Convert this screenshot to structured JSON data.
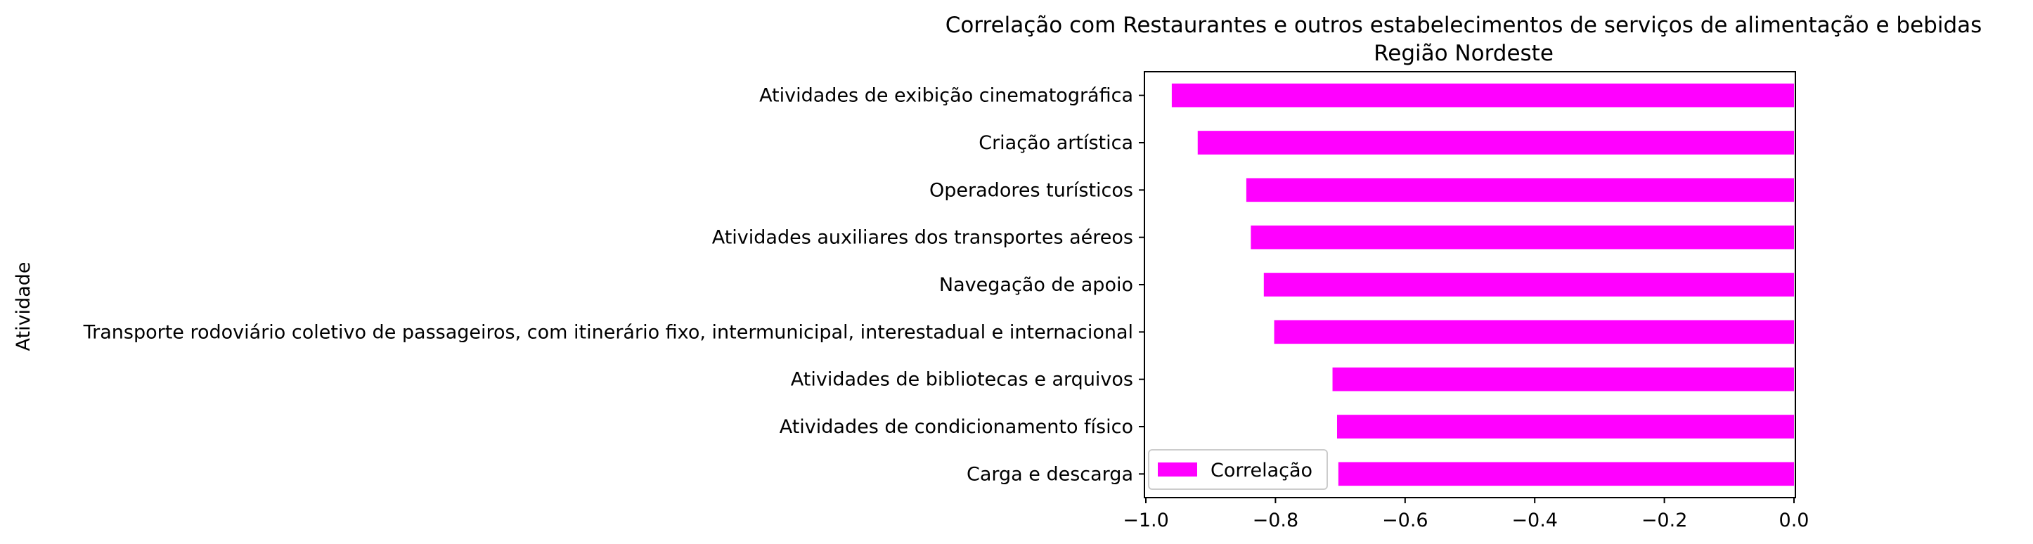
{
  "chart_data": {
    "type": "bar",
    "orientation": "horizontal",
    "title": "Correlação com Restaurantes e outros estabelecimentos de serviços de alimentação e bebidas",
    "subtitle": "Região Nordeste",
    "xlabel": "",
    "ylabel": "Atividade",
    "xlim": [
      -1.0,
      0.0
    ],
    "xticks": [
      -1.0,
      -0.8,
      -0.6,
      -0.4,
      -0.2,
      0.0
    ],
    "xtick_labels": [
      "−1.0",
      "−0.8",
      "−0.6",
      "−0.4",
      "−0.2",
      "0.0"
    ],
    "grid": false,
    "legend_position": "lower-left",
    "series": [
      {
        "name": "Correlação",
        "color": "#ff00ff",
        "values": [
          -0.96,
          -0.92,
          -0.845,
          -0.838,
          -0.818,
          -0.802,
          -0.712,
          -0.705,
          -0.703
        ]
      }
    ],
    "categories": [
      "Atividades de exibição cinematográfica",
      "Criação artística",
      "Operadores turísticos",
      "Atividades auxiliares dos transportes aéreos",
      "Navegação de apoio",
      "Transporte rodoviário coletivo de passageiros, com itinerário fixo, intermunicipal, interestadual e internacional",
      "Atividades de bibliotecas e arquivos",
      "Atividades de condicionamento físico",
      "Carga e descarga"
    ]
  }
}
